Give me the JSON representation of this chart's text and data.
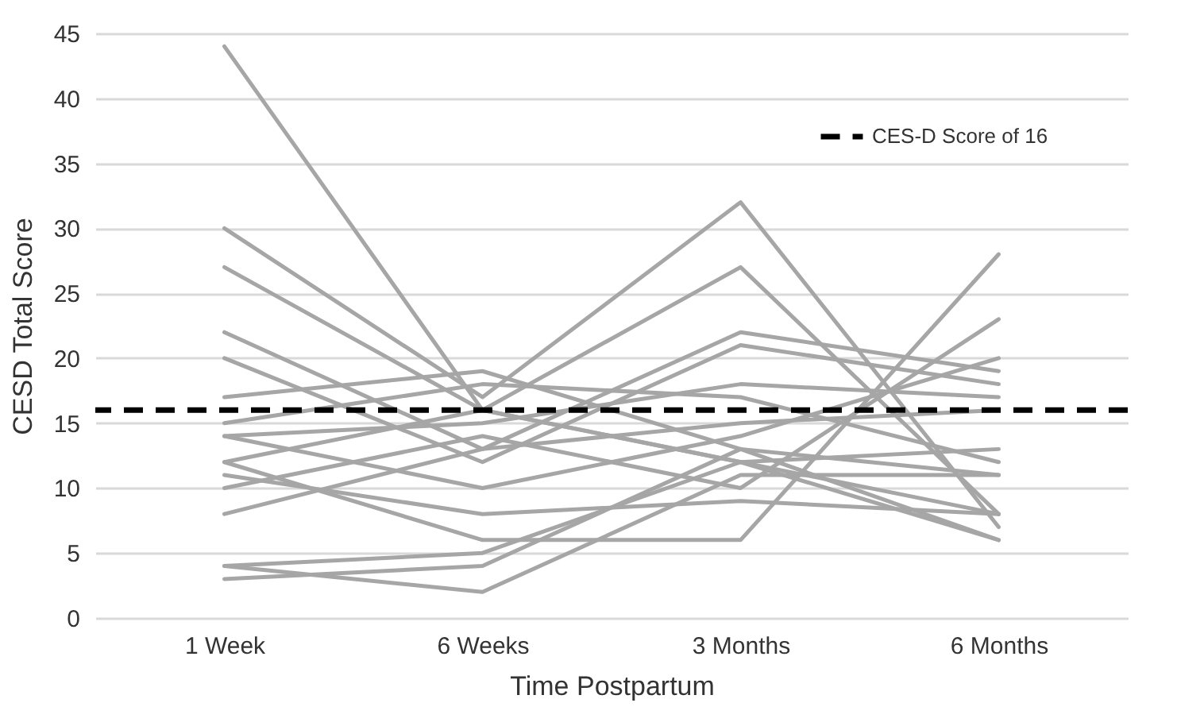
{
  "chart_data": {
    "type": "line",
    "xlabel": "Time Postpartum",
    "ylabel": "CESD Total Score",
    "categories": [
      "1 Week",
      "6 Weeks",
      "3 Months",
      "6 Months"
    ],
    "series": [
      {
        "color": "#a6a6a6",
        "values": [
          44,
          16,
          12,
          8
        ]
      },
      {
        "color": "#a6a6a6",
        "values": [
          30,
          17,
          32,
          7
        ]
      },
      {
        "color": "#a6a6a6",
        "values": [
          27,
          16,
          27,
          8
        ]
      },
      {
        "color": "#a6a6a6",
        "values": [
          22,
          13,
          22,
          19
        ]
      },
      {
        "color": "#a6a6a6",
        "values": [
          20,
          12,
          21,
          18
        ]
      },
      {
        "color": "#a6a6a6",
        "values": [
          17,
          19,
          13,
          11
        ]
      },
      {
        "color": "#a6a6a6",
        "values": [
          15,
          18,
          17,
          12
        ]
      },
      {
        "color": "#a6a6a6",
        "values": [
          14,
          15,
          18,
          17
        ]
      },
      {
        "color": "#a6a6a6",
        "values": [
          14,
          10,
          14,
          20
        ]
      },
      {
        "color": "#a6a6a6",
        "values": [
          12,
          16,
          12,
          6
        ]
      },
      {
        "color": "#a6a6a6",
        "values": [
          12,
          6,
          6,
          28
        ]
      },
      {
        "color": "#a6a6a6",
        "values": [
          11,
          8,
          9,
          8
        ]
      },
      {
        "color": "#a6a6a6",
        "values": [
          10,
          14,
          10,
          23
        ]
      },
      {
        "color": "#a6a6a6",
        "values": [
          8,
          13,
          15,
          16
        ]
      },
      {
        "color": "#a6a6a6",
        "values": [
          4,
          5,
          12,
          13
        ]
      },
      {
        "color": "#a6a6a6",
        "values": [
          4,
          2,
          11,
          11
        ]
      },
      {
        "color": "#a6a6a6",
        "values": [
          3,
          4,
          13,
          6
        ]
      }
    ],
    "ylim": [
      0,
      45
    ],
    "yticks": [
      0,
      5,
      10,
      15,
      20,
      25,
      30,
      35,
      40,
      45
    ],
    "grid": "y",
    "legend": "top right",
    "line_style": "solid",
    "marker": "none",
    "ref_lines": [
      {
        "axis": "y",
        "value": 16,
        "label": "CES-D Score of 16",
        "color": "#000000",
        "line_style": "dashed"
      }
    ]
  }
}
